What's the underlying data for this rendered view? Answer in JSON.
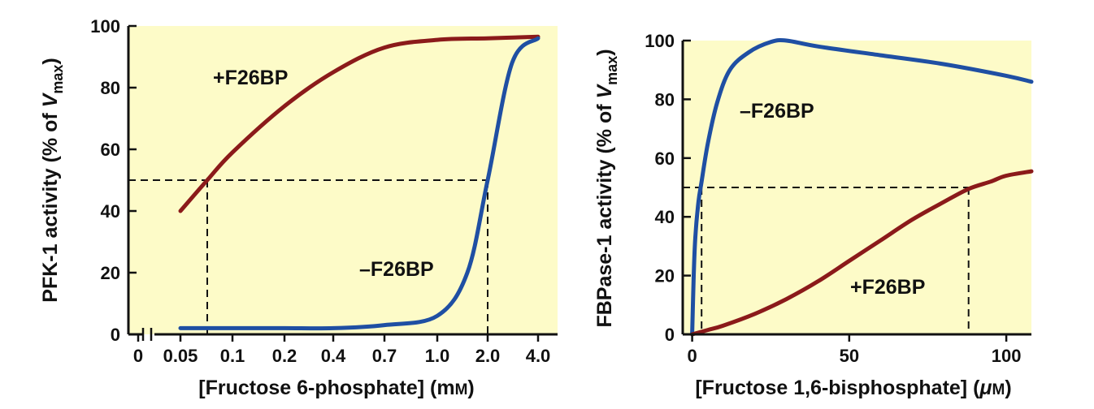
{
  "colors": {
    "plot_background": "#fdfbc8",
    "plus_f26bp": "#8b1a1a",
    "minus_f26bp": "#1f4fa3",
    "axis": "#111111"
  },
  "chart_data": [
    {
      "type": "line",
      "ylabel": "PFK-1 activity (% of V",
      "ylabel_sub": "max",
      "ylabel_suffix": ")",
      "xlabel": "[Fructose 6-phosphate] (mM)",
      "x_scale": "categorical (nonlinear)",
      "x_ticks": [
        "0",
        "0.05",
        "0.1",
        "0.2",
        "0.4",
        "0.7",
        "1.0",
        "2.0",
        "4.0"
      ],
      "x_axis_break": true,
      "y_ticks": [
        "0",
        "20",
        "40",
        "60",
        "80",
        "100"
      ],
      "ylim": [
        0,
        100
      ],
      "grid": false,
      "guide_level": 50,
      "guide_x": [
        "0.08",
        "2.0"
      ],
      "series": [
        {
          "name": "+F26BP",
          "x": [
            "0.05",
            "0.08",
            "0.1",
            "0.2",
            "0.4",
            "0.7",
            "1.0",
            "2.0",
            "4.0"
          ],
          "values": [
            40,
            50,
            59,
            74,
            85,
            93,
            95.5,
            96,
            96.5
          ]
        },
        {
          "name": "–F26BP",
          "x": [
            "0.05",
            "0.1",
            "0.2",
            "0.4",
            "0.7",
            "1.0",
            "1.5",
            "2.0",
            "3.0",
            "4.0"
          ],
          "values": [
            2,
            2,
            2,
            2,
            3,
            6,
            20,
            50,
            88,
            96
          ]
        }
      ]
    },
    {
      "type": "line",
      "ylabel": "FBPase-1 activity (% of V",
      "ylabel_sub": "max",
      "ylabel_suffix": ")",
      "xlabel": "[Fructose 1,6-bisphosphate] (μM)",
      "x_ticks": [
        "0",
        "50",
        "100"
      ],
      "xlim": [
        -3,
        108
      ],
      "y_ticks": [
        "0",
        "20",
        "40",
        "60",
        "80",
        "100"
      ],
      "ylim": [
        0,
        100
      ],
      "grid": false,
      "guide_level": 50,
      "guide_x": [
        3,
        88
      ],
      "series": [
        {
          "name": "–F26BP",
          "x": [
            0,
            0.5,
            1,
            2,
            3,
            5,
            8,
            12,
            18,
            25,
            30,
            40,
            60,
            80,
            100,
            108
          ],
          "values": [
            0,
            20,
            33,
            45,
            52,
            65,
            79,
            90,
            96,
            99.5,
            100,
            98,
            95,
            92,
            88,
            86
          ]
        },
        {
          "name": "+F26BP",
          "x": [
            0,
            5,
            10,
            20,
            30,
            40,
            50,
            60,
            70,
            80,
            88,
            95,
            100,
            108
          ],
          "values": [
            0,
            1.5,
            3,
            7,
            12,
            18,
            25,
            32,
            39,
            45,
            49.5,
            52,
            54,
            55.5
          ]
        }
      ]
    }
  ]
}
